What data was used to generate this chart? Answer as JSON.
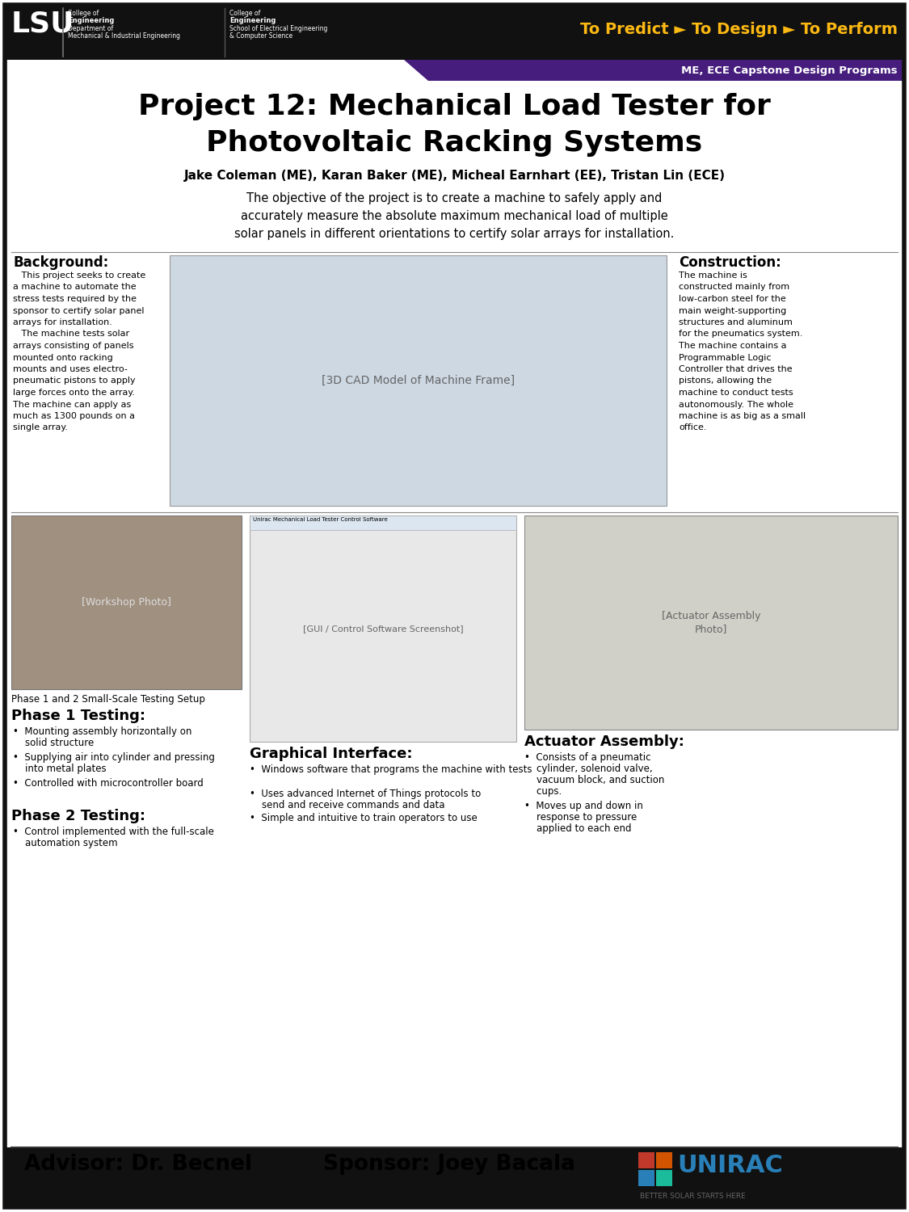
{
  "title_line1": "Project 12: Mechanical Load Tester for",
  "title_line2": "Photovoltaic Racking Systems",
  "authors": "Jake Coleman (ME), Karan Baker (ME), Micheal Earnhart (EE), Tristan Lin (ECE)",
  "obj1": "The objective of the project is to create a machine to safely apply and",
  "obj2": "accurately measure the absolute maximum mechanical load of multiple",
  "obj3": "solar panels in different orientations to certify solar arrays for installation.",
  "header_bg": "#111111",
  "header_gold": "#FDB913",
  "header_purple": "#461D7C",
  "header_right": "To Predict ► To Design ► To Perform",
  "subheader": "ME, ECE Capstone Design Programs",
  "background_section": "Background:",
  "bg_text1": "   This project seeks to create",
  "bg_text2": "a machine to automate the",
  "bg_text3": "stress tests required by the",
  "bg_text4": "sponsor to certify solar panel",
  "bg_text5": "arrays for installation.",
  "bg_text6": "   The machine tests solar",
  "bg_text7": "arrays consisting of panels",
  "bg_text8": "mounted onto racking",
  "bg_text9": "mounts and uses electro-",
  "bg_text10": "pneumatic pistons to apply",
  "bg_text11": "large forces onto the array.",
  "bg_text12": "The machine can apply as",
  "bg_text13": "much as 1300 pounds on a",
  "bg_text14": "single array.",
  "construction_section": "Construction:",
  "con_text": "The machine is\nconstructed mainly from\nlow-carbon steel for the\nmain weight-supporting\nstructures and aluminum\nfor the pneumatics system.\nThe machine contains a\nProgrammable Logic\nController that drives the\npistons, allowing the\nmachine to conduct tests\nautonomously. The whole\nmachine is as big as a small\noffice.",
  "phase1_section": "Phase 1 Testing:",
  "phase1_bullets": [
    "Mounting assembly horizontally on\nsolid structure",
    "Supplying air into cylinder and pressing\ninto metal plates",
    "Controlled with microcontroller board"
  ],
  "phase2_section": "Phase 2 Testing:",
  "phase2_bullets": [
    "Control implemented with the full-scale\nautomation system"
  ],
  "graphical_section": "Graphical Interface:",
  "graphical_bullets": [
    "Windows software that programs the machine\nwith tests",
    "Uses advanced Internet of Things protocols to\nsend and receive commands and data",
    "Simple and intuitive to train operators to use"
  ],
  "actuator_section": "Actuator Assembly:",
  "actuator_bullets": [
    "Consists of a pneumatic\ncylinder, solenoid valve,\nvacuum block, and suction\ncups.",
    "Moves up and down in\nresponse to pressure\napplied to each end"
  ],
  "phase_caption": "Phase 1 and 2 Small-Scale Testing Setup",
  "advisor": "Advisor: Dr. Becnel",
  "sponsor": "Sponsor: Joey Bacala",
  "poster_bg": "#ffffff",
  "border_color": "#111111"
}
